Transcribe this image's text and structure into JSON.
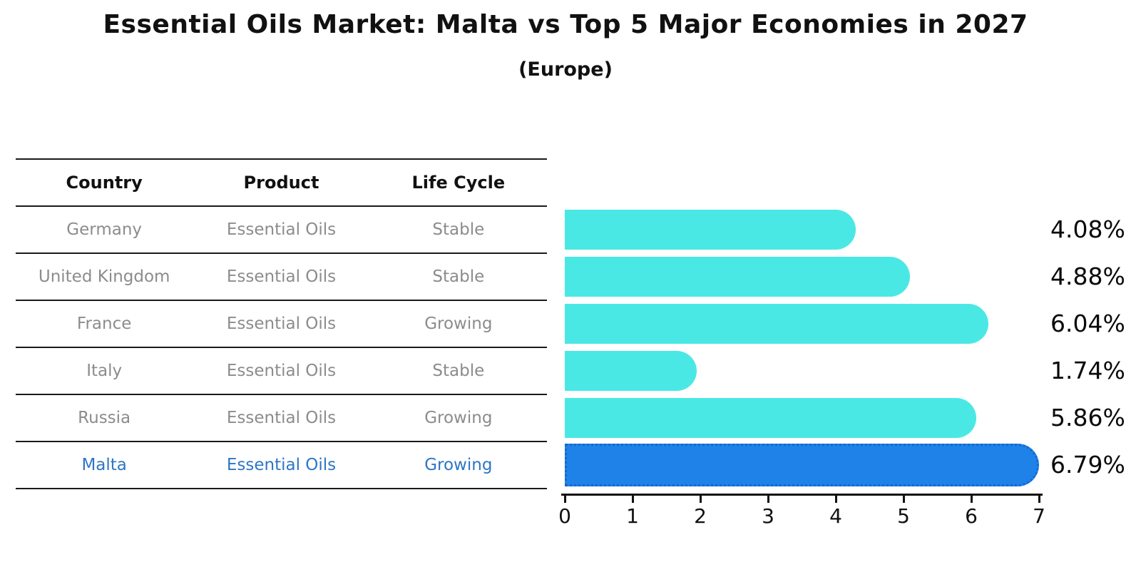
{
  "title": "Essential Oils Market: Malta vs Top 5 Major Economies in 2027",
  "subtitle": "(Europe)",
  "table": {
    "headers": [
      "Country",
      "Product",
      "Life Cycle"
    ],
    "rows": [
      {
        "country": "Germany",
        "product": "Essential Oils",
        "life_cycle": "Stable",
        "highlight": false
      },
      {
        "country": "United Kingdom",
        "product": "Essential Oils",
        "life_cycle": "Stable",
        "highlight": false
      },
      {
        "country": "France",
        "product": "Essential Oils",
        "life_cycle": "Growing",
        "highlight": false
      },
      {
        "country": "Italy",
        "product": "Essential Oils",
        "life_cycle": "Stable",
        "highlight": false
      },
      {
        "country": "Russia",
        "product": "Essential Oils",
        "life_cycle": "Growing",
        "highlight": false,
        "_note": ""
      },
      {
        "country": "Malta",
        "product": "Essential Oils",
        "life_cycle": "Growing",
        "highlight": true
      }
    ]
  },
  "chart_data": {
    "type": "bar",
    "orientation": "horizontal",
    "title": "Essential Oils Market: Malta vs Top 5 Major Economies in 2027",
    "subtitle": "(Europe)",
    "categories": [
      "Germany",
      "United Kingdom",
      "France",
      "Italy",
      "Russia",
      "Malta"
    ],
    "values": [
      4.08,
      4.88,
      6.04,
      1.74,
      5.86,
      6.79
    ],
    "value_labels": [
      "4.08%",
      "4.88%",
      "6.04%",
      "1.74%",
      "5.86%",
      "6.79%"
    ],
    "xlim": [
      0,
      7
    ],
    "x_ticks": [
      0,
      1,
      2,
      3,
      4,
      5,
      6,
      7
    ],
    "x_tick_labels": [
      "0",
      "1",
      "2",
      "3",
      "4",
      "5",
      "6",
      "7"
    ],
    "grid": false,
    "legend": false,
    "highlight_index": 5,
    "bar_color": "#4ae8e5",
    "highlight_bar_color": "#1e82e8",
    "highlight_border_color": "#1668ce"
  },
  "colors": {
    "text_primary": "#111111",
    "text_muted": "#8c8c8c",
    "highlight_text": "#2e75c6",
    "rule": "#1a1a1a"
  }
}
